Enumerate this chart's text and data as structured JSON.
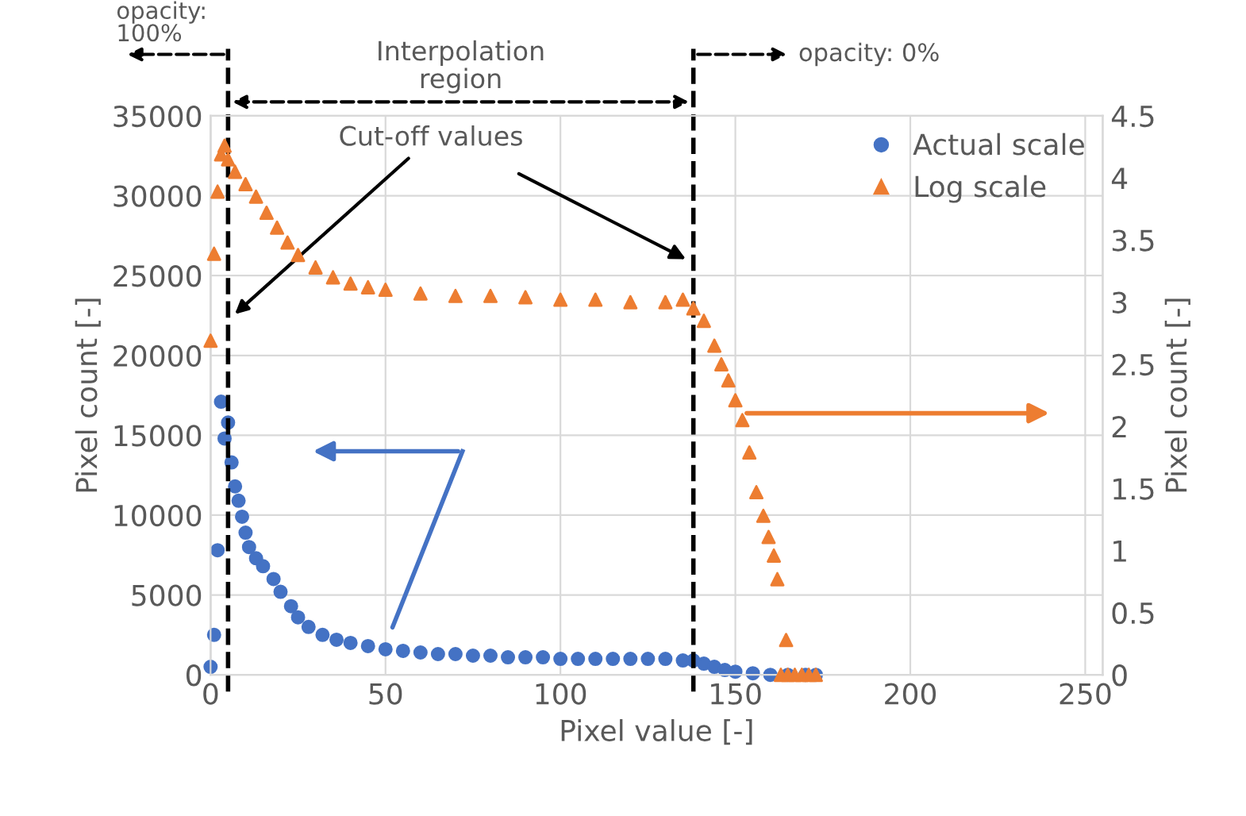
{
  "chart_data": {
    "type": "scatter",
    "xlabel": "Pixel value [-]",
    "ylabel": "Pixel count [-]",
    "y2label": "Pixel count [-]",
    "xlim": [
      0,
      255
    ],
    "xticks": [
      0,
      50,
      100,
      150,
      200,
      250
    ],
    "ylim": [
      0,
      35000
    ],
    "yticks": [
      0,
      5000,
      10000,
      15000,
      20000,
      25000,
      30000,
      35000
    ],
    "y2lim": [
      0,
      4.5
    ],
    "y2ticks": [
      0,
      0.5,
      1,
      1.5,
      2,
      2.5,
      3,
      3.5,
      4,
      4.5
    ],
    "grid": true,
    "legend": "top right",
    "series": [
      {
        "name": "Actual scale",
        "color": "#4472c4",
        "marker": "circle",
        "x": [
          0,
          1,
          2,
          3,
          4,
          5,
          6,
          7,
          8,
          9,
          10,
          11,
          13,
          15,
          18,
          20,
          23,
          25,
          28,
          32,
          36,
          40,
          45,
          50,
          55,
          60,
          65,
          70,
          75,
          80,
          85,
          90,
          95,
          100,
          105,
          110,
          115,
          120,
          125,
          130,
          135,
          138,
          141,
          144,
          147,
          150,
          155,
          160,
          165,
          170,
          173
        ],
        "values": [
          500,
          2500,
          7800,
          17100,
          14800,
          15800,
          13300,
          11800,
          10900,
          9900,
          8900,
          8000,
          7300,
          6800,
          6000,
          5200,
          4300,
          3600,
          3000,
          2500,
          2200,
          2000,
          1800,
          1600,
          1500,
          1400,
          1300,
          1300,
          1200,
          1200,
          1100,
          1100,
          1100,
          1000,
          1000,
          1000,
          1000,
          1000,
          1000,
          1000,
          900,
          900,
          700,
          500,
          300,
          200,
          100,
          0,
          0,
          0,
          0
        ]
      },
      {
        "name": "Log scale",
        "color": "#ed7d31",
        "marker": "triangle",
        "axis": "y2",
        "x": [
          0,
          1,
          2,
          3,
          4,
          5,
          7,
          10,
          13,
          16,
          19,
          22,
          25,
          30,
          35,
          40,
          45,
          50,
          60,
          70,
          80,
          90,
          100,
          110,
          120,
          130,
          135,
          138,
          141,
          144,
          146,
          148,
          150,
          152,
          154,
          156,
          158,
          159.5,
          161,
          162,
          164.5,
          163,
          165,
          167,
          169,
          171,
          173
        ],
        "values": [
          2.69,
          3.39,
          3.89,
          4.19,
          4.26,
          4.15,
          4.05,
          3.95,
          3.85,
          3.72,
          3.6,
          3.48,
          3.38,
          3.28,
          3.2,
          3.15,
          3.12,
          3.1,
          3.07,
          3.05,
          3.05,
          3.04,
          3.02,
          3.02,
          3.0,
          3.0,
          3.02,
          2.95,
          2.85,
          2.65,
          2.5,
          2.37,
          2.21,
          2.05,
          1.79,
          1.47,
          1.28,
          1.11,
          0.96,
          0.77,
          0.28,
          0,
          0,
          0,
          0,
          0,
          0
        ]
      }
    ],
    "ref_lines": [
      {
        "axis": "x",
        "value": 5,
        "color": "#000000",
        "line_style": "dashed"
      },
      {
        "axis": "x",
        "value": 138,
        "color": "#000000",
        "line_style": "dashed"
      }
    ],
    "annotations": [
      "opacity:\n100%",
      "Interpolation\nregion",
      "opacity: 0%",
      "Cut-off values"
    ]
  }
}
